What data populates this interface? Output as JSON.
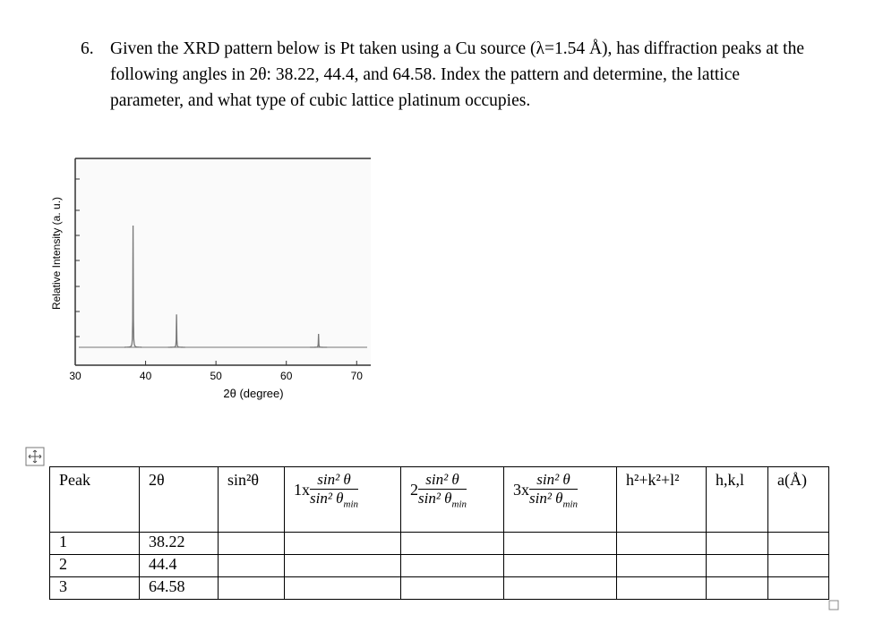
{
  "question": {
    "number": "6.",
    "text": "Given the XRD pattern below is Pt taken using a Cu source (λ=1.54 Å), has diffraction peaks at the following angles in 2θ: 38.22, 44.4, and 64.58. Index the pattern and determine, the lattice parameter, and what type of cubic lattice platinum occupies."
  },
  "figure": {
    "y_label": "Relative Intensity (a. u.)",
    "x_label": "2θ (degree)",
    "xlim": [
      30,
      72
    ],
    "xticks": [
      30,
      40,
      50,
      60,
      70
    ],
    "peak_intensity": [
      100,
      27,
      11
    ]
  },
  "table": {
    "header": [
      "Peak",
      "2θ",
      "sin²θ",
      "1x",
      "2",
      "3x",
      "h²+k²+l²",
      "h,k,l",
      "a(Å)"
    ],
    "fraction": {
      "numerator": "sin² θ",
      "denominator": "sin² θ",
      "subscript": "min"
    },
    "rows": [
      [
        1,
        38.22
      ],
      [
        2,
        44.4
      ],
      [
        3,
        64.58
      ]
    ]
  }
}
